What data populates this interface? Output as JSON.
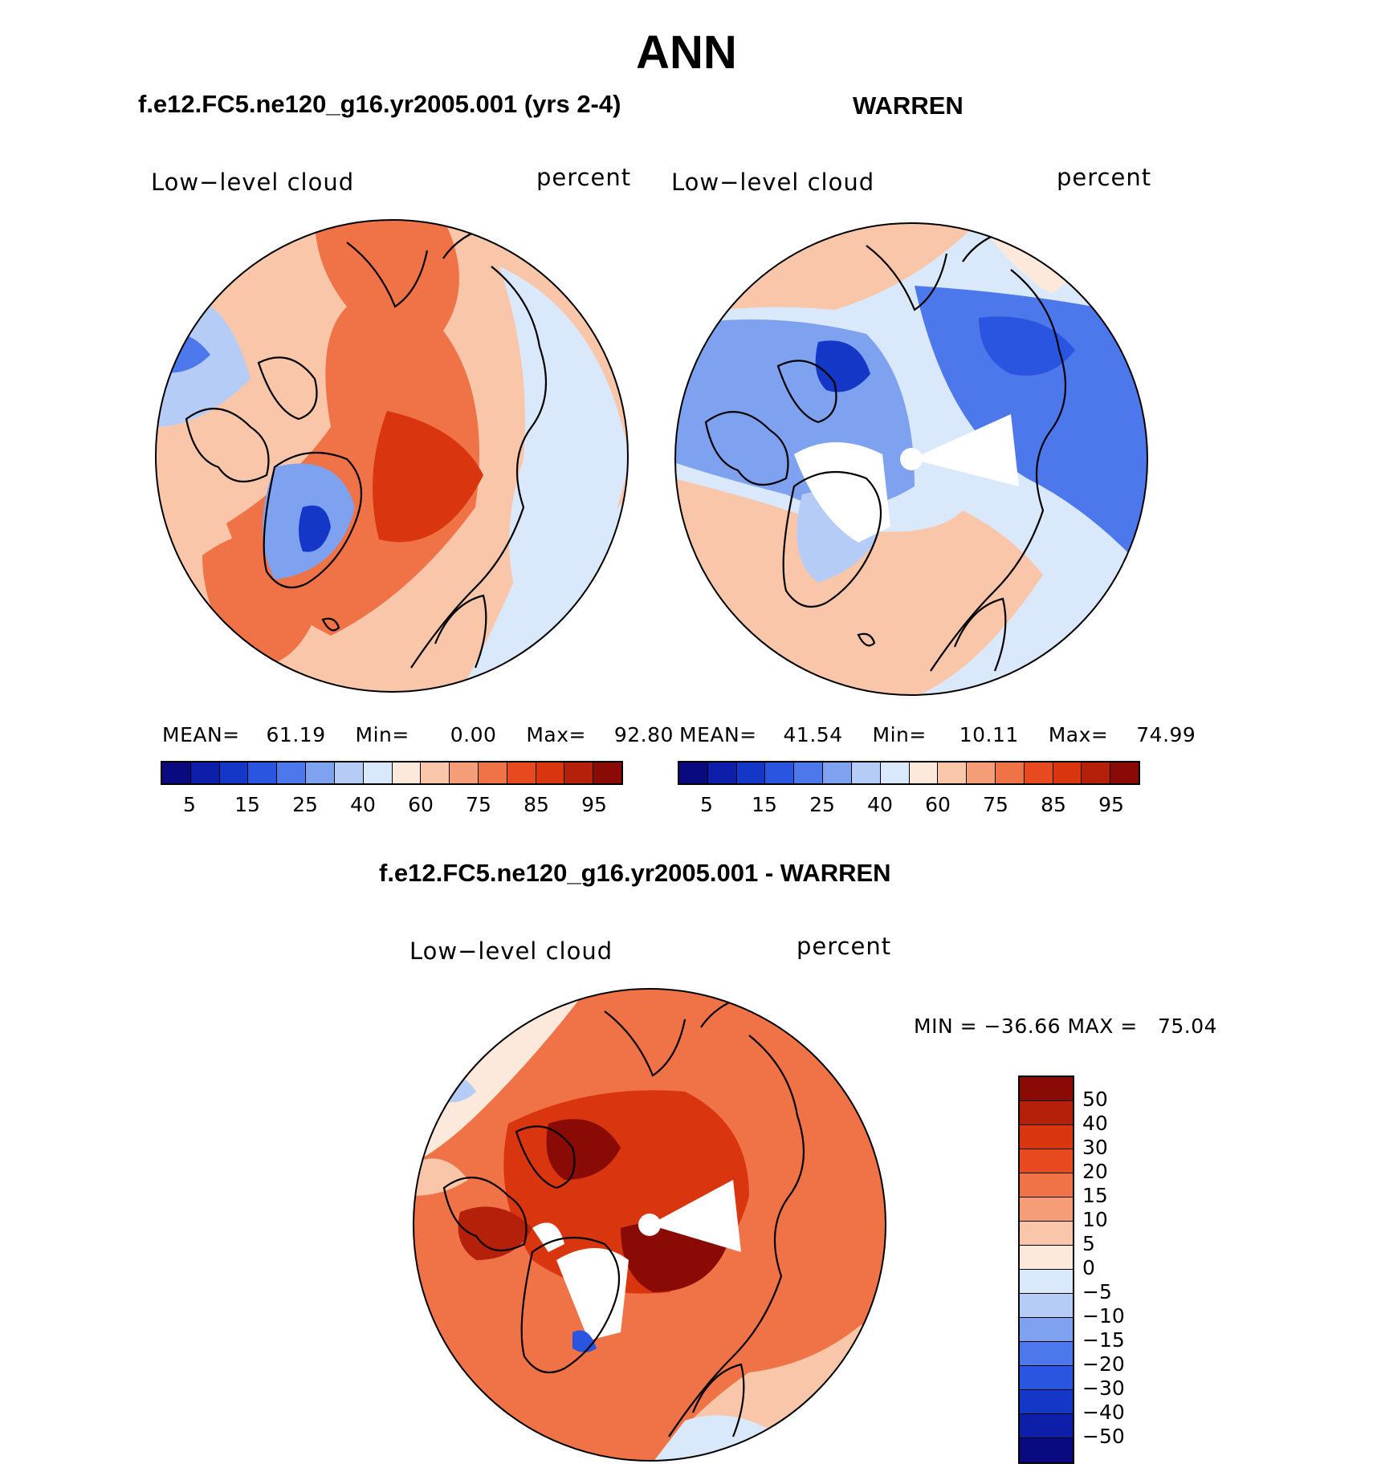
{
  "figure_title": "ANN",
  "panels": {
    "model": {
      "title": "f.e12.FC5.ne120_g16.yr2005.001 (yrs 2-4)",
      "variable": "Low−level cloud",
      "units": "percent",
      "stats": {
        "mean_label": "MEAN=",
        "mean": "61.19",
        "min_label": "Min=",
        "min": "0.00",
        "max_label": "Max=",
        "max": "92.80"
      }
    },
    "obs": {
      "title": "WARREN",
      "variable": "Low−level cloud",
      "units": "percent",
      "stats": {
        "mean_label": "MEAN=",
        "mean": "41.54",
        "min_label": "Min=",
        "min": "10.11",
        "max_label": "Max=",
        "max": "74.99"
      }
    },
    "diff": {
      "title": "f.e12.FC5.ne120_g16.yr2005.001 - WARREN",
      "variable": "Low−level cloud",
      "units": "percent",
      "minmax_text": "MIN = −36.66 MAX =   75.04"
    }
  },
  "colorbar_abs": {
    "ticks": [
      "5",
      "15",
      "25",
      "40",
      "60",
      "75",
      "85",
      "95"
    ],
    "colors": [
      "#0a0a80",
      "#0d1fa8",
      "#1537c8",
      "#2a55e0",
      "#4d78ec",
      "#7fa2f0",
      "#b5ccf6",
      "#dae8fb",
      "#fde9dc",
      "#f9c6a9",
      "#f59d76",
      "#ef7346",
      "#e84a1f",
      "#d9360f",
      "#b5200a",
      "#8a0a05"
    ]
  },
  "colorbar_diff": {
    "ticks": [
      "50",
      "40",
      "30",
      "20",
      "15",
      "10",
      "5",
      "0",
      "−5",
      "−10",
      "−15",
      "−20",
      "−30",
      "−40",
      "−50"
    ],
    "colors": [
      "#8a0a05",
      "#b5200a",
      "#d9360f",
      "#e84a1f",
      "#ef7346",
      "#f59d76",
      "#f9c6a9",
      "#fde9dc",
      "#dae8fb",
      "#b5ccf6",
      "#7fa2f0",
      "#4d78ec",
      "#2a55e0",
      "#1537c8",
      "#0d1fa8",
      "#0a0a80"
    ]
  }
}
